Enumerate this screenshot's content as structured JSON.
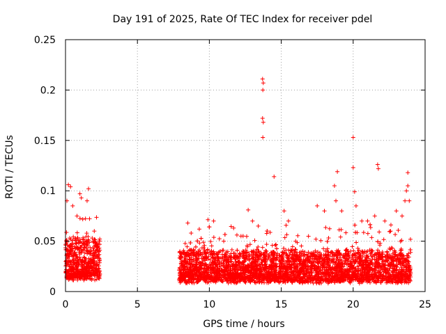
{
  "chart_data": {
    "type": "scatter",
    "title": "Day 191 of 2025, Rate Of TEC Index for receiver pdel",
    "xlabel": "GPS time / hours",
    "ylabel": "ROTI / TECUs",
    "xlim": [
      0,
      25
    ],
    "ylim": [
      0,
      0.25
    ],
    "x_ticks": [
      "0",
      "5",
      "10",
      "15",
      "20",
      "25"
    ],
    "y_ticks": [
      "0",
      "0.05",
      "0.1",
      "0.15",
      "0.2",
      "0.25"
    ],
    "grid": true,
    "marker": "+",
    "color": "#ff0000",
    "series": [
      {
        "name": "ROTI",
        "segments": [
          {
            "start": 0.0,
            "end": 2.4,
            "base": 0.026,
            "spread": 0.02
          },
          {
            "start": 7.9,
            "end": 24.0,
            "base": 0.02,
            "spread": 0.015
          }
        ],
        "highlights": [
          [
            0.2,
            0.106
          ],
          [
            0.35,
            0.104
          ],
          [
            0.1,
            0.09
          ],
          [
            0.5,
            0.085
          ],
          [
            1.0,
            0.097
          ],
          [
            1.1,
            0.093
          ],
          [
            1.6,
            0.102
          ],
          [
            1.5,
            0.09
          ],
          [
            0.8,
            0.075
          ],
          [
            2.0,
            0.06
          ],
          [
            8.5,
            0.068
          ],
          [
            9.3,
            0.062
          ],
          [
            10.3,
            0.07
          ],
          [
            11.0,
            0.05
          ],
          [
            12.2,
            0.055
          ],
          [
            12.7,
            0.081
          ],
          [
            13.0,
            0.07
          ],
          [
            13.4,
            0.065
          ],
          [
            13.7,
            0.211
          ],
          [
            13.75,
            0.207
          ],
          [
            13.72,
            0.2
          ],
          [
            13.7,
            0.172
          ],
          [
            13.75,
            0.168
          ],
          [
            13.72,
            0.153
          ],
          [
            14.5,
            0.114
          ],
          [
            15.2,
            0.08
          ],
          [
            15.5,
            0.07
          ],
          [
            16.0,
            0.05
          ],
          [
            16.5,
            0.04
          ],
          [
            17.5,
            0.085
          ],
          [
            18.0,
            0.08
          ],
          [
            18.7,
            0.105
          ],
          [
            18.9,
            0.119
          ],
          [
            18.8,
            0.09
          ],
          [
            19.2,
            0.08
          ],
          [
            20.0,
            0.153
          ],
          [
            20.0,
            0.123
          ],
          [
            20.1,
            0.099
          ],
          [
            20.2,
            0.085
          ],
          [
            20.6,
            0.07
          ],
          [
            21.0,
            0.07
          ],
          [
            21.5,
            0.075
          ],
          [
            21.7,
            0.126
          ],
          [
            21.75,
            0.122
          ],
          [
            22.2,
            0.07
          ],
          [
            22.6,
            0.06
          ],
          [
            23.0,
            0.08
          ],
          [
            23.4,
            0.075
          ],
          [
            23.6,
            0.09
          ],
          [
            23.8,
            0.118
          ],
          [
            23.8,
            0.105
          ],
          [
            23.7,
            0.1
          ],
          [
            23.9,
            0.09
          ]
        ]
      }
    ]
  }
}
